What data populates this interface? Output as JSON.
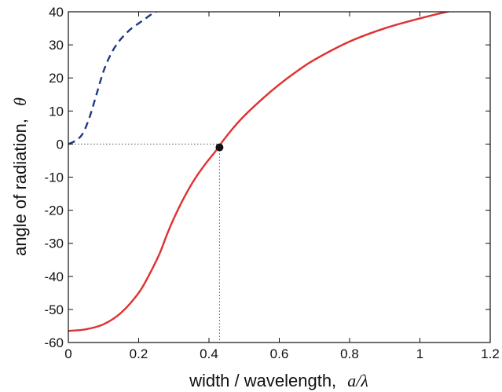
{
  "chart_data": {
    "type": "line",
    "xlabel": "width / wavelength,",
    "xlabel_symbol": "a/λ",
    "ylabel": "angle of radiation,",
    "ylabel_symbol": "θ",
    "xlim": [
      0,
      1.2
    ],
    "ylim": [
      -60,
      40
    ],
    "xticks": [
      0,
      0.2,
      0.4,
      0.6,
      0.8,
      1,
      1.2
    ],
    "xtick_labels": [
      "0",
      "0.2",
      "0.4",
      "0.6",
      "0.8",
      "1",
      "1.2"
    ],
    "yticks": [
      40,
      30,
      20,
      10,
      0,
      -10,
      -20,
      -30,
      -40,
      -50,
      -60
    ],
    "ytick_labels": [
      "40",
      "30",
      "20",
      "10",
      "0",
      "-10",
      "-20",
      "-30",
      "-40",
      "-50",
      "-60"
    ],
    "grid": false,
    "series": [
      {
        "style": "solid",
        "color": "#e03030",
        "x": [
          0,
          0.05,
          0.1,
          0.15,
          0.2,
          0.23,
          0.26,
          0.28,
          0.3,
          0.33,
          0.36,
          0.39,
          0.42,
          0.44,
          0.47,
          0.5,
          0.55,
          0.6,
          0.65,
          0.7,
          0.8,
          0.9,
          1.0,
          1.1,
          1.17
        ],
        "y": [
          -56.5,
          -56,
          -54.5,
          -51,
          -45,
          -39.5,
          -33,
          -27.5,
          -22.5,
          -16,
          -10.5,
          -6,
          -2,
          1,
          5,
          8.5,
          13.5,
          18,
          22,
          25.5,
          31,
          35,
          38,
          40.5,
          41.5
        ]
      },
      {
        "style": "dashed",
        "color": "#1f3a80",
        "x": [
          0,
          0.02,
          0.04,
          0.06,
          0.08,
          0.1,
          0.12,
          0.14,
          0.16,
          0.18,
          0.2,
          0.22,
          0.24,
          0.26
        ],
        "y": [
          0,
          1,
          3,
          8,
          15,
          22,
          27,
          30.5,
          33,
          35,
          36.5,
          38,
          39.5,
          40.5
        ]
      }
    ],
    "marker": {
      "x": 0.43,
      "y": -1,
      "color": "#111111"
    },
    "guide_lines": {
      "x": 0.43,
      "y": 0,
      "style": "dotted"
    },
    "colors": {
      "axis": "#111111",
      "guide": "#555555"
    }
  }
}
